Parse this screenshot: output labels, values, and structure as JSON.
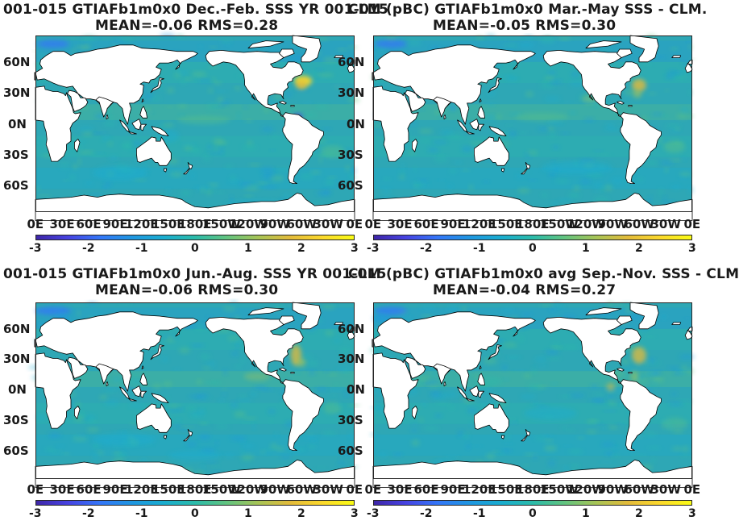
{
  "colors": {
    "ocean_base": "#2ea7b5",
    "land": "#ffffff",
    "colormap": [
      "#3e26a8",
      "#4743e1",
      "#3476f8",
      "#1f96e1",
      "#1aadd0",
      "#2bbbaa",
      "#62c480",
      "#a7c456",
      "#e3bb3a",
      "#fbd82c",
      "#f9fb15"
    ]
  },
  "panels": [
    {
      "title_line1": "001-015 GTIAFb1m0x0  Dec.-Feb. SSS YR 001-015",
      "title_line2": "MEAN=-0.06   RMS=0.28",
      "lat_labels": [
        "60N",
        "30N",
        "0N",
        "30S",
        "60S"
      ],
      "lon_labels": [
        "0E",
        "30E",
        "60E",
        "90E",
        "120E",
        "150E",
        "180E",
        "150W",
        "120W",
        "90W",
        "60W",
        "30W",
        "0E"
      ],
      "colorbar_ticks": [
        "-3",
        "-2",
        "-1",
        "0",
        "1",
        "2",
        "3"
      ]
    },
    {
      "title_line1": "CLM (pBC) GTIAFb1m0x0 Mar.-May SSS - CLM.",
      "title_line2": "MEAN=-0.05   RMS=0.30",
      "lat_labels": [
        "60N",
        "30N",
        "0N",
        "30S",
        "60S"
      ],
      "lon_labels": [
        "0E",
        "30E",
        "60E",
        "90E",
        "120E",
        "150E",
        "180E",
        "150W",
        "120W",
        "90W",
        "60W",
        "30W",
        "0E"
      ],
      "colorbar_ticks": [
        "-3",
        "-2",
        "-1",
        "0",
        "1",
        "2",
        "3"
      ]
    },
    {
      "title_line1": "001-015 GTIAFb1m0x0 Jun.-Aug. SSS YR 001-015",
      "title_line2": "MEAN=-0.06   RMS=0.30",
      "lat_labels": [
        "60N",
        "30N",
        "0N",
        "30S",
        "60S"
      ],
      "lon_labels": [
        "0E",
        "30E",
        "60E",
        "90E",
        "120E",
        "150E",
        "180E",
        "150W",
        "120W",
        "90W",
        "60W",
        "30W",
        "0E"
      ],
      "colorbar_ticks": [
        "-3",
        "-2",
        "-1",
        "0",
        "1",
        "2",
        "3"
      ]
    },
    {
      "title_line1": "CLM (pBC) GTIAFb1m0x0 avg Sep.-Nov. SSS - CLM",
      "title_line2": "MEAN=-0.04   RMS=0.27",
      "lat_labels": [
        "60N",
        "30N",
        "0N",
        "30S",
        "60S"
      ],
      "lon_labels": [
        "0E",
        "30E",
        "60E",
        "90E",
        "120E",
        "150E",
        "180E",
        "150W",
        "120W",
        "90W",
        "60W",
        "30W",
        "0E"
      ],
      "colorbar_ticks": [
        "-3",
        "-2",
        "-1",
        "0",
        "1",
        "2",
        "3"
      ]
    }
  ]
}
